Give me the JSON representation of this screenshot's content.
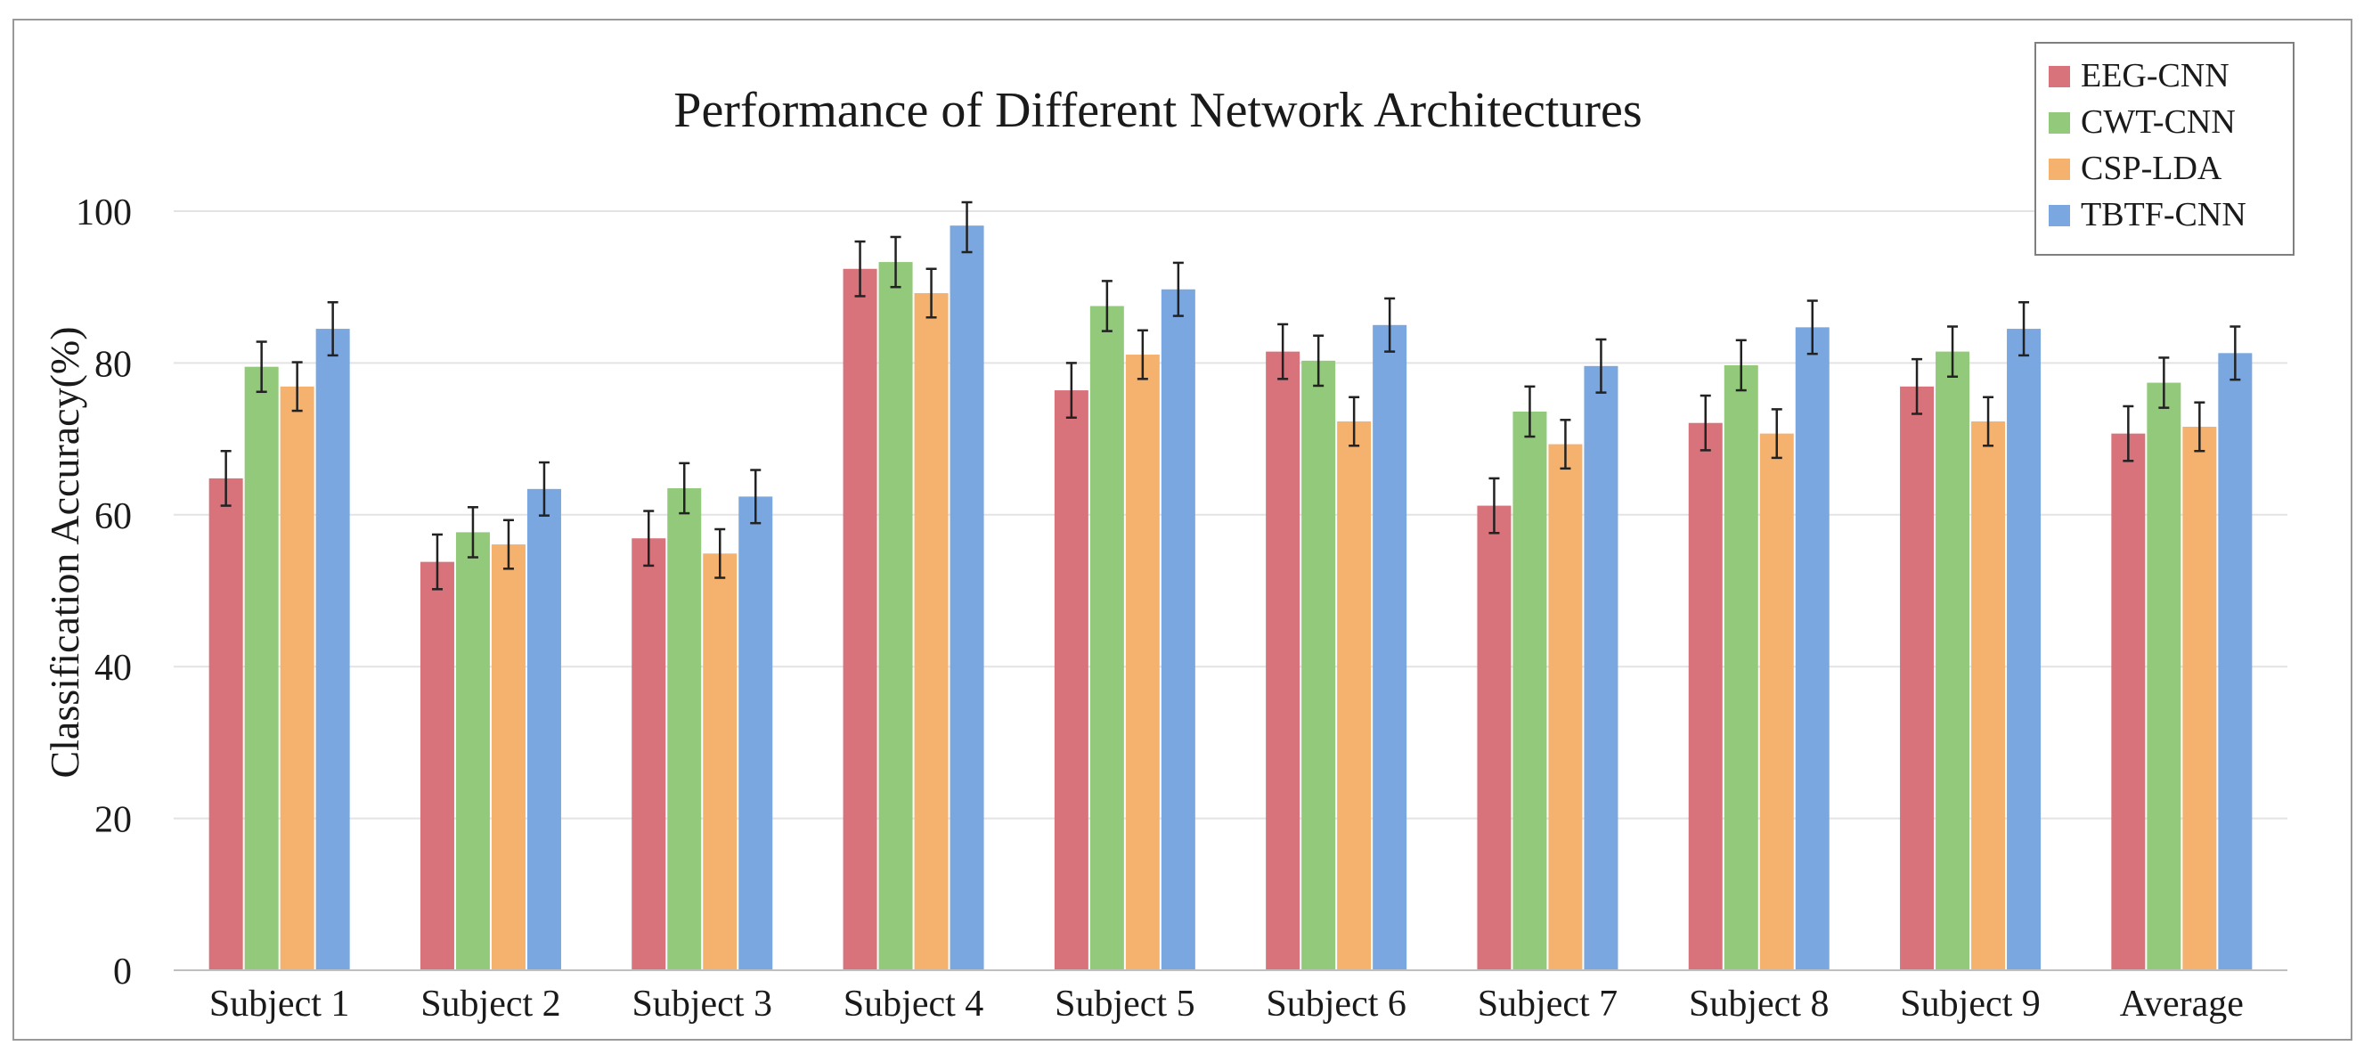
{
  "chart_data": {
    "type": "bar",
    "title": "Performance of Different Network Architectures",
    "xlabel": "",
    "ylabel": "Classification Accuracy(%)",
    "ylim": [
      0,
      100
    ],
    "yticks": [
      0,
      20,
      40,
      60,
      80,
      100
    ],
    "grid": true,
    "legend_position": "top-right",
    "error_bars": true,
    "categories": [
      "Subject 1",
      "Subject 2",
      "Subject 3",
      "Subject 4",
      "Subject 5",
      "Subject 6",
      "Subject 7",
      "Subject 8",
      "Subject 9",
      "Average"
    ],
    "series": [
      {
        "name": "EEG-CNN",
        "color": "#d9737b",
        "values": [
          64.8,
          53.8,
          56.9,
          92.4,
          76.4,
          81.5,
          61.2,
          72.1,
          76.9,
          70.7
        ],
        "errors": [
          3.6,
          3.6,
          3.6,
          3.6,
          3.6,
          3.6,
          3.6,
          3.6,
          3.6,
          3.6
        ]
      },
      {
        "name": "CWT-CNN",
        "color": "#93c97a",
        "values": [
          79.5,
          57.7,
          63.5,
          93.3,
          87.5,
          80.3,
          73.6,
          79.7,
          81.5,
          77.4
        ],
        "errors": [
          3.3,
          3.3,
          3.3,
          3.3,
          3.3,
          3.3,
          3.3,
          3.3,
          3.3,
          3.3
        ]
      },
      {
        "name": "CSP-LDA",
        "color": "#f5b26f",
        "values": [
          76.9,
          56.1,
          54.9,
          89.2,
          81.1,
          72.3,
          69.3,
          70.7,
          72.3,
          71.6
        ],
        "errors": [
          3.2,
          3.2,
          3.2,
          3.2,
          3.2,
          3.2,
          3.2,
          3.2,
          3.2,
          3.2
        ]
      },
      {
        "name": "TBTF-CNN",
        "color": "#7aa7e0",
        "values": [
          84.5,
          63.4,
          62.4,
          98.1,
          89.7,
          85.0,
          79.6,
          84.7,
          84.5,
          81.3
        ],
        "errors": [
          3.5,
          3.5,
          3.5,
          3.5,
          3.5,
          3.5,
          3.5,
          3.5,
          3.5,
          3.5
        ]
      }
    ]
  }
}
